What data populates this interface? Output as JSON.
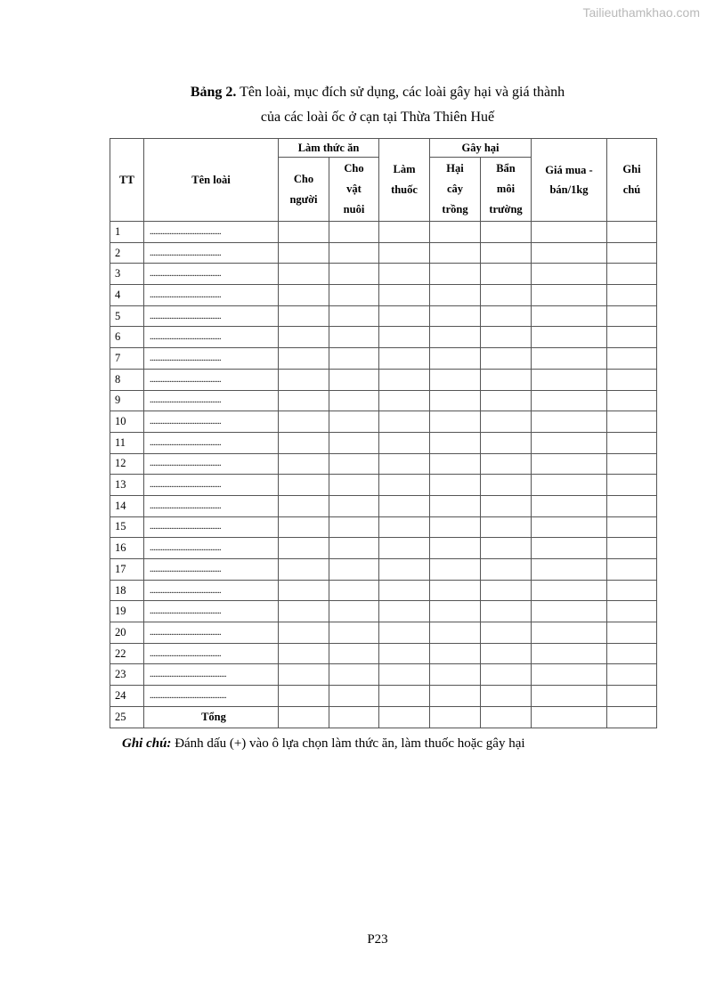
{
  "watermark": "Tailieuthamkhao.com",
  "title": {
    "label": "Bảng 2.",
    "line1": " Tên loài, mục đích sử dụng, các loài gây hại và giá thành",
    "line2": "của các loài ốc ở cạn tại Thừa Thiên Huế"
  },
  "table": {
    "headers": {
      "tt": "TT",
      "name": "Tên loài",
      "food": "Làm thức ăn",
      "food_people": "Cho người",
      "food_animals": "Cho vật nuôi",
      "medicine": "Làm thuốc",
      "harm": "Gây hại",
      "harm_crops": "Hại cây trồng",
      "harm_env": "Bẩn môi trường",
      "price": "Giá mua - bán/1kg",
      "note": "Ghi chú"
    },
    "rows": [
      {
        "tt": "1",
        "name": "........................................"
      },
      {
        "tt": "2",
        "name": "........................................"
      },
      {
        "tt": "3",
        "name": "........................................"
      },
      {
        "tt": "4",
        "name": "........................................"
      },
      {
        "tt": "5",
        "name": "........................................"
      },
      {
        "tt": "6",
        "name": "........................................"
      },
      {
        "tt": "7",
        "name": "........................................"
      },
      {
        "tt": "8",
        "name": "........................................"
      },
      {
        "tt": "9",
        "name": "........................................"
      },
      {
        "tt": "10",
        "name": "........................................"
      },
      {
        "tt": "11",
        "name": "........................................"
      },
      {
        "tt": "12",
        "name": "........................................"
      },
      {
        "tt": "13",
        "name": "........................................"
      },
      {
        "tt": "14",
        "name": "........................................"
      },
      {
        "tt": "15",
        "name": "........................................"
      },
      {
        "tt": "16",
        "name": "........................................"
      },
      {
        "tt": "17",
        "name": "........................................"
      },
      {
        "tt": "18",
        "name": "........................................"
      },
      {
        "tt": "19",
        "name": "........................................"
      },
      {
        "tt": "20",
        "name": "........................................"
      },
      {
        "tt": "22",
        "name": "........................................"
      },
      {
        "tt": "23",
        "name": "..........................................."
      },
      {
        "tt": "24",
        "name": "..........................................."
      },
      {
        "tt": "25",
        "name": "Tổng",
        "total": true
      }
    ]
  },
  "note": {
    "label": "Ghi chú:",
    "text": " Đánh dấu (+) vào ô lựa chọn làm thức ăn, làm thuốc hoặc gây hại"
  },
  "page_number": "P23"
}
